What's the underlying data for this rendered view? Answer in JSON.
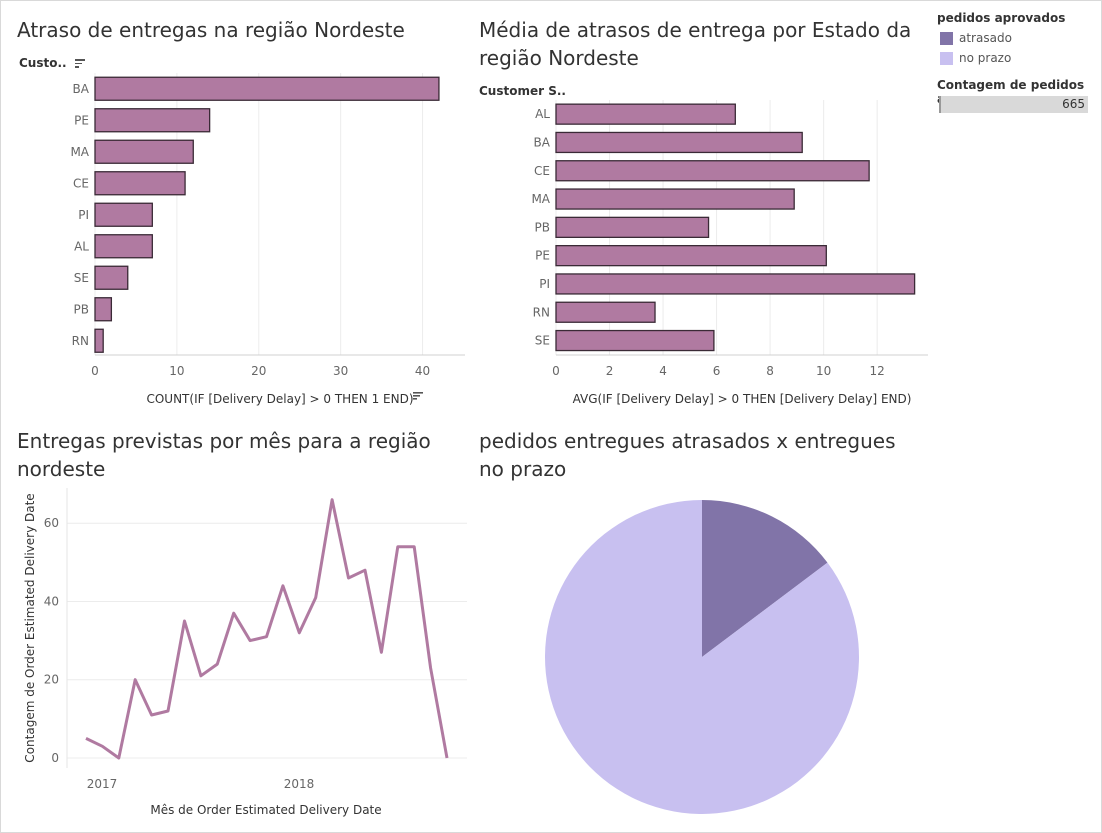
{
  "colors": {
    "bar": "#b07aa1",
    "bar_stroke": "#3a2a36",
    "line": "#b07aa1",
    "late": "#8174a8",
    "ontime": "#c8c0f0",
    "grid": "#ececec"
  },
  "chart_data": [
    {
      "type": "bar",
      "title": "Atraso de entregas na região Nordeste",
      "row_header": "Custo..",
      "categories": [
        "BA",
        "PE",
        "MA",
        "CE",
        "PI",
        "AL",
        "SE",
        "PB",
        "RN"
      ],
      "values": [
        42,
        14,
        12,
        11,
        7,
        7,
        4,
        2,
        1
      ],
      "xlabel": "COUNT(IF [Delivery Delay] > 0 THEN 1 END)",
      "xticks": [
        "0",
        "10",
        "20",
        "30",
        "40"
      ],
      "xlim": [
        0,
        45
      ]
    },
    {
      "type": "bar",
      "title": "Média de atrasos de entrega por Estado da região Nordeste",
      "row_header": "Customer S..",
      "categories": [
        "AL",
        "BA",
        "CE",
        "MA",
        "PB",
        "PE",
        "PI",
        "RN",
        "SE"
      ],
      "values": [
        6.7,
        9.2,
        11.7,
        8.9,
        5.7,
        10.1,
        13.4,
        3.7,
        5.9
      ],
      "xlabel": "AVG(IF [Delivery Delay] > 0 THEN [Delivery Delay] END)",
      "xticks": [
        "0",
        "2",
        "4",
        "6",
        "8",
        "10",
        "12"
      ],
      "xlim": [
        0,
        13.9
      ]
    },
    {
      "type": "line",
      "title": "Entregas  previstas por mês para a região nordeste",
      "ylabel": "Contagem de Order Estimated Delivery Date",
      "xlabel": "Mês de Order Estimated Delivery Date",
      "xticks": [
        "2017",
        "2018"
      ],
      "yticks": [
        "0",
        "20",
        "40",
        "60"
      ],
      "ylim": [
        0,
        69
      ],
      "values": [
        5,
        3,
        0,
        20,
        11,
        12,
        35,
        21,
        24,
        37,
        30,
        31,
        44,
        32,
        41,
        66,
        46,
        48,
        27,
        54,
        54,
        23,
        0
      ]
    },
    {
      "type": "pie",
      "title": "pedidos entregues atrasados x entregues no prazo",
      "slices": [
        {
          "label": "atrasado",
          "value": 98
        },
        {
          "label": "no prazo",
          "value": 567
        }
      ]
    }
  ],
  "legend": {
    "title": "pedidos aprovados",
    "items": [
      {
        "label": "atrasado",
        "color": "#8174a8"
      },
      {
        "label": "no prazo",
        "color": "#c8c0f0"
      }
    ],
    "count_title": "Contagem de pedidos ap...",
    "count_value": "665"
  }
}
